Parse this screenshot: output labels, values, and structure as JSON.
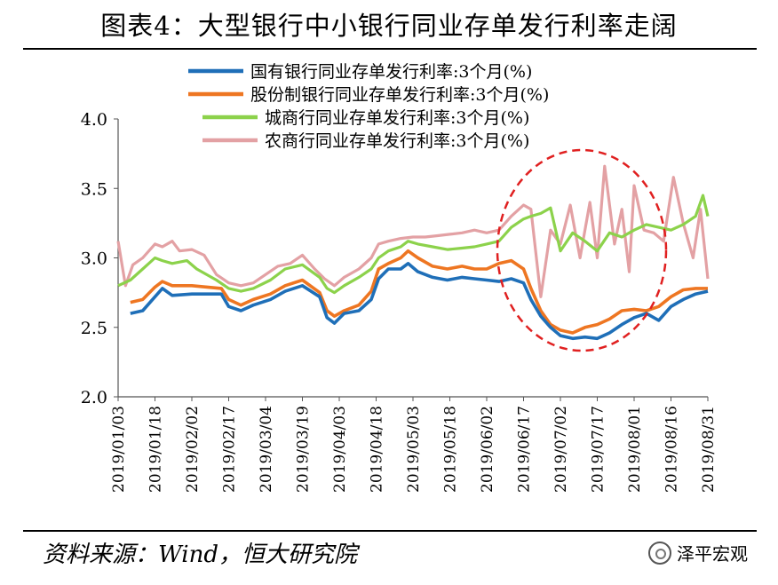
{
  "title": "图表4：大型银行中小银行同业存单发行利率走阔",
  "source": "资料来源：Wind，恒大研究院",
  "brand": "泽平宏观",
  "chart_data": {
    "type": "line",
    "ylim": [
      2.0,
      4.0
    ],
    "y_ticks": [
      "4.0",
      "3.5",
      "3.0",
      "2.5",
      "2.0"
    ],
    "y_tick_values": [
      4.0,
      3.5,
      3.0,
      2.5,
      2.0
    ],
    "x_tick_labels": [
      "2019/01/03",
      "2019/01/18",
      "2019/02/02",
      "2019/02/17",
      "2019/03/04",
      "2019/03/19",
      "2019/04/03",
      "2019/04/18",
      "2019/05/03",
      "2019/05/18",
      "2019/06/02",
      "2019/06/17",
      "2019/07/02",
      "2019/07/17",
      "2019/08/01",
      "2019/08/16",
      "2019/08/31"
    ],
    "x_tick_index": [
      0,
      15,
      30,
      45,
      60,
      75,
      90,
      105,
      120,
      135,
      150,
      165,
      180,
      195,
      210,
      225,
      240
    ],
    "x_range": [
      0,
      240
    ],
    "grid": false,
    "legend_position": "top",
    "annotation": "red dashed ellipse highlighting mid-June to early-August 2019",
    "series": [
      {
        "name": "国有银行同业存单发行利率:3个月(%)",
        "color": "#1f6fb8",
        "keypoints": [
          [
            5,
            2.6
          ],
          [
            10,
            2.62
          ],
          [
            15,
            2.72
          ],
          [
            18,
            2.78
          ],
          [
            22,
            2.73
          ],
          [
            30,
            2.74
          ],
          [
            42,
            2.74
          ],
          [
            45,
            2.65
          ],
          [
            50,
            2.62
          ],
          [
            55,
            2.66
          ],
          [
            62,
            2.7
          ],
          [
            68,
            2.76
          ],
          [
            75,
            2.8
          ],
          [
            82,
            2.72
          ],
          [
            85,
            2.57
          ],
          [
            88,
            2.53
          ],
          [
            92,
            2.6
          ],
          [
            98,
            2.62
          ],
          [
            103,
            2.7
          ],
          [
            106,
            2.85
          ],
          [
            110,
            2.92
          ],
          [
            115,
            2.92
          ],
          [
            118,
            2.96
          ],
          [
            122,
            2.9
          ],
          [
            128,
            2.86
          ],
          [
            134,
            2.84
          ],
          [
            140,
            2.86
          ],
          [
            145,
            2.85
          ],
          [
            150,
            2.84
          ],
          [
            155,
            2.83
          ],
          [
            160,
            2.85
          ],
          [
            165,
            2.82
          ],
          [
            168,
            2.7
          ],
          [
            172,
            2.58
          ],
          [
            176,
            2.5
          ],
          [
            180,
            2.44
          ],
          [
            185,
            2.42
          ],
          [
            190,
            2.43
          ],
          [
            195,
            2.42
          ],
          [
            200,
            2.46
          ],
          [
            205,
            2.52
          ],
          [
            210,
            2.57
          ],
          [
            215,
            2.6
          ],
          [
            220,
            2.55
          ],
          [
            225,
            2.65
          ],
          [
            230,
            2.7
          ],
          [
            235,
            2.74
          ],
          [
            240,
            2.76
          ]
        ]
      },
      {
        "name": "股份制银行同业存单发行利率:3个月(%)",
        "color": "#ee7622",
        "keypoints": [
          [
            5,
            2.68
          ],
          [
            10,
            2.7
          ],
          [
            15,
            2.79
          ],
          [
            18,
            2.83
          ],
          [
            22,
            2.8
          ],
          [
            30,
            2.8
          ],
          [
            42,
            2.78
          ],
          [
            45,
            2.7
          ],
          [
            50,
            2.66
          ],
          [
            55,
            2.7
          ],
          [
            62,
            2.74
          ],
          [
            68,
            2.8
          ],
          [
            75,
            2.84
          ],
          [
            82,
            2.75
          ],
          [
            85,
            2.62
          ],
          [
            88,
            2.58
          ],
          [
            92,
            2.62
          ],
          [
            98,
            2.66
          ],
          [
            103,
            2.76
          ],
          [
            106,
            2.92
          ],
          [
            110,
            2.96
          ],
          [
            115,
            3.0
          ],
          [
            118,
            3.05
          ],
          [
            122,
            3.0
          ],
          [
            128,
            2.94
          ],
          [
            134,
            2.92
          ],
          [
            140,
            2.94
          ],
          [
            145,
            2.92
          ],
          [
            150,
            2.92
          ],
          [
            155,
            2.96
          ],
          [
            160,
            2.98
          ],
          [
            165,
            2.92
          ],
          [
            168,
            2.78
          ],
          [
            172,
            2.62
          ],
          [
            176,
            2.52
          ],
          [
            180,
            2.48
          ],
          [
            185,
            2.46
          ],
          [
            190,
            2.5
          ],
          [
            195,
            2.52
          ],
          [
            200,
            2.56
          ],
          [
            205,
            2.62
          ],
          [
            210,
            2.63
          ],
          [
            215,
            2.62
          ],
          [
            220,
            2.65
          ],
          [
            225,
            2.72
          ],
          [
            230,
            2.77
          ],
          [
            235,
            2.78
          ],
          [
            240,
            2.78
          ]
        ]
      },
      {
        "name": "城商行同业存单发行利率:3个月(%)",
        "color": "#8cd24b",
        "keypoints": [
          [
            0,
            2.8
          ],
          [
            5,
            2.84
          ],
          [
            10,
            2.92
          ],
          [
            15,
            3.0
          ],
          [
            18,
            2.98
          ],
          [
            22,
            2.96
          ],
          [
            28,
            2.98
          ],
          [
            32,
            2.92
          ],
          [
            40,
            2.84
          ],
          [
            45,
            2.78
          ],
          [
            50,
            2.76
          ],
          [
            55,
            2.78
          ],
          [
            62,
            2.84
          ],
          [
            68,
            2.92
          ],
          [
            75,
            2.95
          ],
          [
            82,
            2.86
          ],
          [
            85,
            2.78
          ],
          [
            88,
            2.75
          ],
          [
            92,
            2.8
          ],
          [
            98,
            2.86
          ],
          [
            103,
            2.92
          ],
          [
            106,
            3.0
          ],
          [
            110,
            3.05
          ],
          [
            115,
            3.08
          ],
          [
            118,
            3.12
          ],
          [
            122,
            3.1
          ],
          [
            128,
            3.08
          ],
          [
            134,
            3.06
          ],
          [
            140,
            3.07
          ],
          [
            145,
            3.08
          ],
          [
            150,
            3.1
          ],
          [
            155,
            3.12
          ],
          [
            160,
            3.22
          ],
          [
            165,
            3.28
          ],
          [
            168,
            3.3
          ],
          [
            172,
            3.32
          ],
          [
            176,
            3.36
          ],
          [
            180,
            3.05
          ],
          [
            185,
            3.18
          ],
          [
            190,
            3.12
          ],
          [
            195,
            3.05
          ],
          [
            200,
            3.18
          ],
          [
            205,
            3.15
          ],
          [
            210,
            3.2
          ],
          [
            215,
            3.24
          ],
          [
            220,
            3.22
          ],
          [
            225,
            3.2
          ],
          [
            230,
            3.24
          ],
          [
            235,
            3.3
          ],
          [
            238,
            3.45
          ],
          [
            240,
            3.3
          ]
        ]
      },
      {
        "name": "农商行同业存单发行利率:3个月(%)",
        "color": "#e3a1a4",
        "keypoints": [
          [
            0,
            3.12
          ],
          [
            3,
            2.8
          ],
          [
            6,
            2.95
          ],
          [
            10,
            3.0
          ],
          [
            15,
            3.1
          ],
          [
            18,
            3.08
          ],
          [
            22,
            3.12
          ],
          [
            25,
            3.05
          ],
          [
            30,
            3.06
          ],
          [
            35,
            3.02
          ],
          [
            40,
            2.88
          ],
          [
            45,
            2.82
          ],
          [
            50,
            2.8
          ],
          [
            55,
            2.82
          ],
          [
            60,
            2.88
          ],
          [
            65,
            2.94
          ],
          [
            70,
            2.96
          ],
          [
            75,
            3.02
          ],
          [
            80,
            2.92
          ],
          [
            84,
            2.85
          ],
          [
            88,
            2.8
          ],
          [
            92,
            2.86
          ],
          [
            98,
            2.92
          ],
          [
            103,
            3.0
          ],
          [
            106,
            3.1
          ],
          [
            110,
            3.12
          ],
          [
            115,
            3.14
          ],
          [
            120,
            3.15
          ],
          [
            125,
            3.15
          ],
          [
            130,
            3.16
          ],
          [
            135,
            3.17
          ],
          [
            140,
            3.18
          ],
          [
            145,
            3.2
          ],
          [
            150,
            3.18
          ],
          [
            155,
            3.2
          ],
          [
            160,
            3.3
          ],
          [
            165,
            3.38
          ],
          [
            168,
            3.35
          ],
          [
            172,
            2.72
          ],
          [
            176,
            3.2
          ],
          [
            180,
            3.1
          ],
          [
            184,
            3.38
          ],
          [
            188,
            3.0
          ],
          [
            192,
            3.4
          ],
          [
            195,
            3.0
          ],
          [
            198,
            3.66
          ],
          [
            202,
            3.1
          ],
          [
            205,
            3.35
          ],
          [
            208,
            2.9
          ],
          [
            210,
            3.52
          ],
          [
            214,
            3.2
          ],
          [
            218,
            3.18
          ],
          [
            222,
            3.12
          ],
          [
            226,
            3.58
          ],
          [
            230,
            3.25
          ],
          [
            234,
            3.0
          ],
          [
            237,
            3.35
          ],
          [
            240,
            2.85
          ]
        ]
      }
    ]
  }
}
